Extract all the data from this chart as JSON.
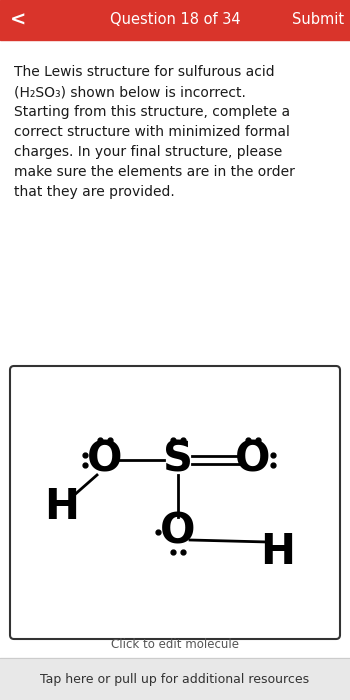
{
  "header_color": "#d9342b",
  "header_text": "Question 18 of 34",
  "header_submit": "Submit",
  "header_back": "<",
  "bg_color": "#ffffff",
  "footer_text": "Click to edit molecule",
  "bottom_bar_text": "Tap here or pull up for additional resources",
  "bottom_bar_color": "#e8e8e8",
  "text_color": "#1a1a1a",
  "gray_text": "#555555",
  "body_lines": [
    "The Lewis structure for sulfurous acid",
    "(H₂SO₃) shown below is incorrect.",
    "Starting from this structure, complete a",
    "correct structure with minimized formal",
    "charges. In your final structure, please",
    "make sure the elements are in the order",
    "that they are provided."
  ]
}
